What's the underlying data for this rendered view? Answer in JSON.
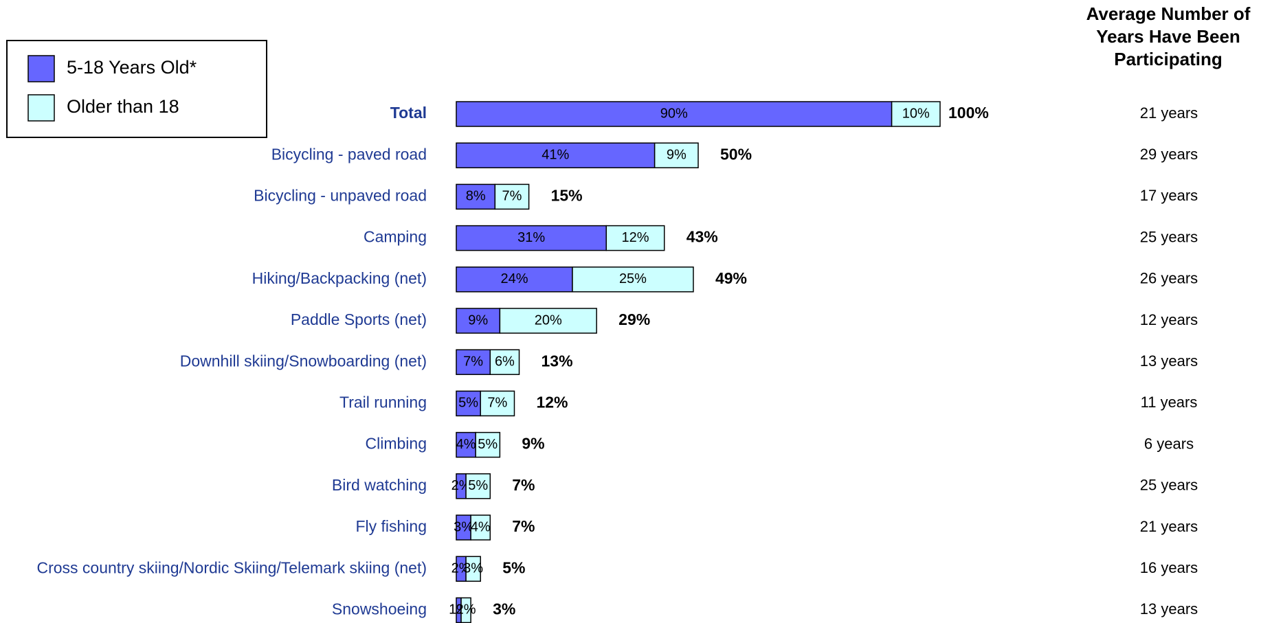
{
  "chart_data": {
    "type": "stacked-bar-horizontal",
    "categories": [
      "Total",
      "Bicycling - paved road",
      "Bicycling - unpaved road",
      "Camping",
      "Hiking/Backpacking (net)",
      "Paddle Sports (net)",
      "Downhill skiing/Snowboarding (net)",
      "Trail running",
      "Climbing",
      "Bird watching",
      "Fly fishing",
      "Cross country skiing/Nordic Skiing/Telemark skiing (net)",
      "Snowshoeing"
    ],
    "series": [
      {
        "name": "5-18 Years Old*",
        "color": "#6666ff",
        "values": [
          90,
          41,
          8,
          31,
          24,
          9,
          7,
          5,
          4,
          2,
          3,
          2,
          1
        ],
        "value_labels": [
          "90%",
          "41%",
          "8%",
          "31%",
          "24%",
          "9%",
          "7%",
          "5%",
          "4%",
          "2%",
          "3%",
          "2%",
          "1%"
        ]
      },
      {
        "name": "Older than 18",
        "color": "#ccffff",
        "values": [
          10,
          9,
          7,
          12,
          25,
          20,
          6,
          7,
          5,
          5,
          4,
          3,
          2
        ],
        "value_labels": [
          "10%",
          "9%",
          "7%",
          "12%",
          "25%",
          "20%",
          "6%",
          "7%",
          "5%",
          "5%",
          "4%",
          "3%",
          "2%"
        ]
      }
    ],
    "totals": {
      "values": [
        100,
        50,
        15,
        43,
        49,
        29,
        13,
        12,
        9,
        7,
        7,
        5,
        3
      ],
      "value_labels": [
        "100%",
        "50%",
        "15%",
        "43%",
        "49%",
        "29%",
        "13%",
        "12%",
        "9%",
        "7%",
        "7%",
        "5%",
        "3%"
      ]
    },
    "years_header": [
      "Average Number of",
      "Years Have Been",
      "Participating"
    ],
    "years": [
      "21 years",
      "29 years",
      "17 years",
      "25 years",
      "26 years",
      "12 years",
      "13 years",
      "11 years",
      "6 years",
      "25 years",
      "21 years",
      "16 years",
      "13 years"
    ],
    "xlim": [
      0,
      100
    ]
  }
}
